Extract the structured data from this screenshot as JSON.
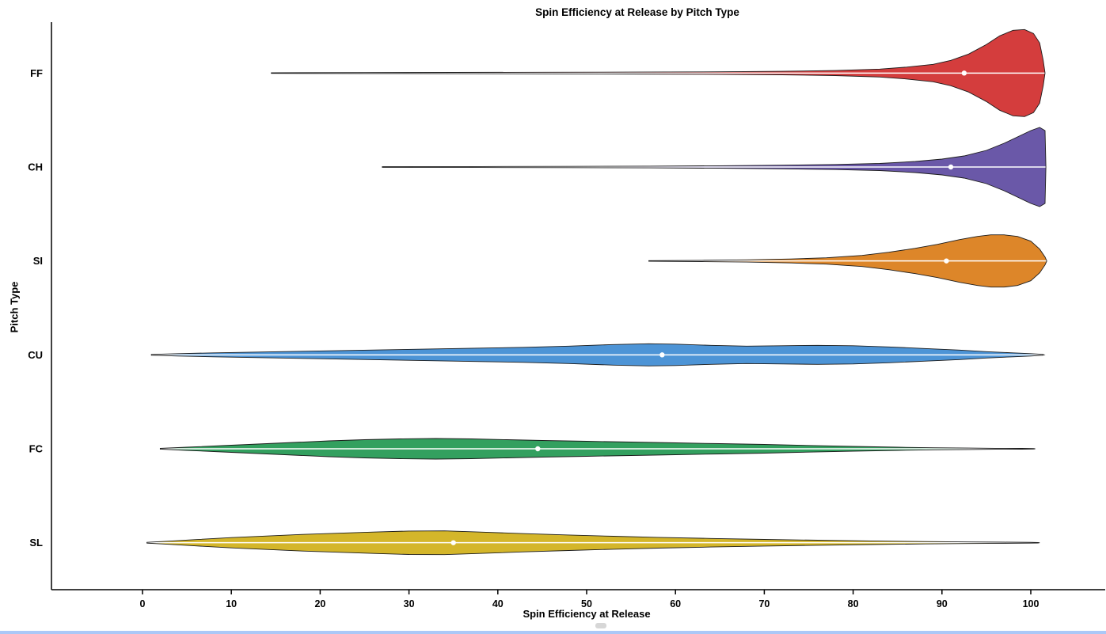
{
  "chart_data": {
    "type": "violin",
    "title": "Spin Efficiency at Release by Pitch Type",
    "xlabel": "Spin Efficiency at Release",
    "ylabel": "Pitch Type",
    "xlim": [
      0,
      100
    ],
    "xticks": [
      0,
      10,
      20,
      30,
      40,
      50,
      60,
      70,
      80,
      90,
      100
    ],
    "grid": "off",
    "legend": "none",
    "categories": [
      "FF",
      "CH",
      "SI",
      "CU",
      "FC",
      "SL"
    ],
    "series": [
      {
        "name": "FF",
        "color": "#d43d3d",
        "median": 92.5,
        "range": [
          14.5,
          101.6
        ],
        "profile": [
          [
            14.5,
            0.4
          ],
          [
            25,
            0.6
          ],
          [
            35,
            0.8
          ],
          [
            45,
            1.0
          ],
          [
            55,
            1.2
          ],
          [
            65,
            1.6
          ],
          [
            72,
            2.2
          ],
          [
            78,
            3.2
          ],
          [
            83,
            5.0
          ],
          [
            86,
            7.5
          ],
          [
            89,
            11
          ],
          [
            91,
            16
          ],
          [
            93,
            24
          ],
          [
            95,
            36
          ],
          [
            96.5,
            47
          ],
          [
            98,
            54
          ],
          [
            99.3,
            55
          ],
          [
            100.3,
            50
          ],
          [
            101,
            38
          ],
          [
            101.4,
            16
          ],
          [
            101.6,
            0
          ]
        ]
      },
      {
        "name": "CH",
        "color": "#6a58a8",
        "median": 91,
        "range": [
          27,
          101.7
        ],
        "profile": [
          [
            27,
            0.4
          ],
          [
            38,
            0.6
          ],
          [
            48,
            0.8
          ],
          [
            57,
            1.1
          ],
          [
            65,
            1.6
          ],
          [
            72,
            2.3
          ],
          [
            78,
            3.2
          ],
          [
            83,
            4.5
          ],
          [
            87,
            7
          ],
          [
            90,
            10
          ],
          [
            92.5,
            14
          ],
          [
            95,
            21
          ],
          [
            97,
            30
          ],
          [
            98.5,
            38
          ],
          [
            100,
            46
          ],
          [
            101,
            50
          ],
          [
            101.6,
            46
          ],
          [
            101.7,
            0
          ]
        ]
      },
      {
        "name": "SI",
        "color": "#dd8629",
        "median": 90.5,
        "range": [
          57,
          101.8
        ],
        "profile": [
          [
            57,
            0.4
          ],
          [
            63,
            0.8
          ],
          [
            68,
            1.4
          ],
          [
            73,
            2.5
          ],
          [
            77,
            4
          ],
          [
            81,
            7
          ],
          [
            84,
            11
          ],
          [
            87,
            16
          ],
          [
            89.5,
            21
          ],
          [
            92,
            27
          ],
          [
            94,
            31
          ],
          [
            95.5,
            33
          ],
          [
            97,
            33
          ],
          [
            98.5,
            31
          ],
          [
            100,
            25
          ],
          [
            101,
            15
          ],
          [
            101.6,
            5
          ],
          [
            101.8,
            0
          ]
        ]
      },
      {
        "name": "CU",
        "color": "#4d94d6",
        "median": 58.5,
        "range": [
          1,
          101.5
        ],
        "profile": [
          [
            1,
            0.5
          ],
          [
            4,
            1.5
          ],
          [
            8,
            2.5
          ],
          [
            13,
            3.5
          ],
          [
            18,
            4.5
          ],
          [
            23,
            5.5
          ],
          [
            28,
            6.5
          ],
          [
            33,
            7.5
          ],
          [
            38,
            8.5
          ],
          [
            43,
            9.5
          ],
          [
            48,
            11
          ],
          [
            53,
            13
          ],
          [
            57,
            14
          ],
          [
            60,
            13.5
          ],
          [
            64,
            12
          ],
          [
            68,
            11
          ],
          [
            72,
            11.5
          ],
          [
            76,
            12
          ],
          [
            80,
            11.5
          ],
          [
            84,
            10
          ],
          [
            88,
            8
          ],
          [
            92,
            6
          ],
          [
            95,
            4
          ],
          [
            98,
            2.5
          ],
          [
            100,
            1.5
          ],
          [
            101.3,
            0.6
          ],
          [
            101.5,
            0
          ]
        ]
      },
      {
        "name": "FC",
        "color": "#33a05f",
        "median": 44.5,
        "range": [
          2,
          100.5
        ],
        "profile": [
          [
            2,
            0.5
          ],
          [
            5,
            2
          ],
          [
            9,
            4
          ],
          [
            13,
            6
          ],
          [
            17,
            8
          ],
          [
            21,
            10
          ],
          [
            25,
            11.5
          ],
          [
            29,
            12.5
          ],
          [
            33,
            13
          ],
          [
            37,
            12.5
          ],
          [
            41,
            11.5
          ],
          [
            45,
            10.5
          ],
          [
            50,
            9.5
          ],
          [
            55,
            8.5
          ],
          [
            60,
            7.5
          ],
          [
            65,
            6.5
          ],
          [
            70,
            5.5
          ],
          [
            75,
            4.2
          ],
          [
            80,
            3
          ],
          [
            85,
            2
          ],
          [
            89,
            1.3
          ],
          [
            93,
            0.9
          ],
          [
            96,
            0.6
          ],
          [
            99,
            0.45
          ],
          [
            100.3,
            0.3
          ],
          [
            100.5,
            0
          ]
        ]
      },
      {
        "name": "SL",
        "color": "#d4b62a",
        "median": 35,
        "range": [
          0.5,
          101
        ],
        "profile": [
          [
            0.5,
            0.5
          ],
          [
            3,
            2
          ],
          [
            6,
            4
          ],
          [
            10,
            6.5
          ],
          [
            14,
            8.5
          ],
          [
            18,
            10.5
          ],
          [
            22,
            12
          ],
          [
            26,
            13.5
          ],
          [
            30,
            14.8
          ],
          [
            34,
            15
          ],
          [
            38,
            13.5
          ],
          [
            43,
            11.5
          ],
          [
            48,
            9.8
          ],
          [
            53,
            8.2
          ],
          [
            58,
            6.8
          ],
          [
            64,
            5.4
          ],
          [
            70,
            4.2
          ],
          [
            76,
            3.2
          ],
          [
            82,
            2.3
          ],
          [
            88,
            1.5
          ],
          [
            93,
            1
          ],
          [
            97,
            0.7
          ],
          [
            100,
            0.5
          ],
          [
            100.8,
            0.3
          ],
          [
            101,
            0
          ]
        ]
      }
    ],
    "style": {
      "outline_color": "#1c1c1c",
      "median_marker_color": "#ffffff",
      "center_line_color": "#ffffff",
      "axis_color": "#000000",
      "bottom_strip_color": "#abc8f7"
    }
  }
}
